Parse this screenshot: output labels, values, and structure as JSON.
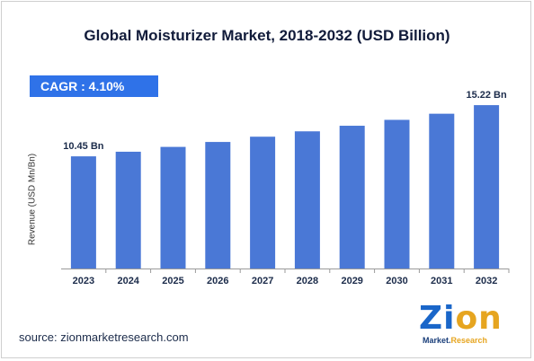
{
  "title": "Global Moisturizer Market, 2018-2032 (USD Billion)",
  "cagr_label": "CAGR : 4.10%",
  "source": "source: zionmarketresearch.com",
  "logo": {
    "word_main": "Zi",
    "word_accent": "on",
    "sub_main": "Market.",
    "sub_accent": "Research"
  },
  "colors": {
    "bar": "#4a78d6",
    "title": "#111b3a",
    "cagr_bg": "#2f72e8",
    "axis": "#9a9a9a"
  },
  "chart_data": {
    "type": "bar",
    "title": "Global Moisturizer Market, 2018-2032 (USD Billion)",
    "ylabel": "Revenue (USD Mn/Bn)",
    "xlabel": "",
    "categories": [
      "2023",
      "2024",
      "2025",
      "2026",
      "2027",
      "2028",
      "2029",
      "2030",
      "2031",
      "2032"
    ],
    "values": [
      10.45,
      10.88,
      11.33,
      11.79,
      12.28,
      12.78,
      13.3,
      13.85,
      14.42,
      15.22
    ],
    "data_labels": [
      {
        "category": "2023",
        "text": "10.45 Bn"
      },
      {
        "category": "2032",
        "text": "15.22 Bn"
      }
    ],
    "ylim": [
      0,
      16.9
    ],
    "grid": false
  }
}
